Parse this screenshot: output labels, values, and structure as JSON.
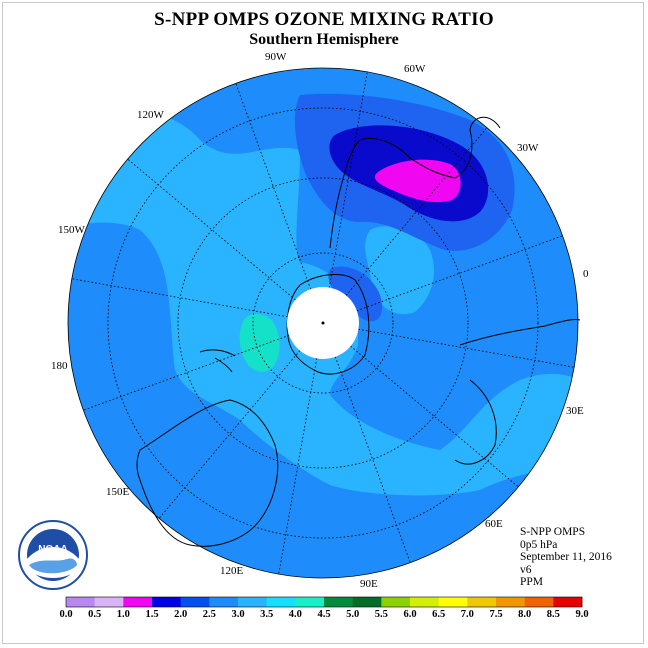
{
  "title": "S-NPP OMPS OZONE MIXING RATIO",
  "subtitle": "Southern Hemisphere",
  "logo": {
    "name": "noaa-logo",
    "text": "NOAA",
    "ring_text": "NATIONAL OCEANIC AND ATMOSPHERIC ADMINISTRATION · U.S. DEPARTMENT OF COMMERCE"
  },
  "info": {
    "instrument": "S-NPP OMPS",
    "level": "0p5 hPa",
    "date": "September 11, 2016",
    "version": "v6",
    "units": "PPM"
  },
  "longitude_labels": [
    "90W",
    "60W",
    "30W",
    "0",
    "30E",
    "60E",
    "90E",
    "120E",
    "150E",
    "180",
    "150W",
    "120W"
  ],
  "colorbar": {
    "ticks": [
      "0.0",
      "0.5",
      "1.0",
      "1.5",
      "2.0",
      "2.5",
      "3.0",
      "3.5",
      "4.0",
      "4.5",
      "5.0",
      "5.5",
      "6.0",
      "6.5",
      "7.0",
      "7.5",
      "8.0",
      "8.5",
      "9.0"
    ],
    "colors": [
      "#b987f0",
      "#d8b4f4",
      "#f006f0",
      "#0000e6",
      "#0050f0",
      "#1e8cfa",
      "#2ab4ff",
      "#14e1ff",
      "#14f0c8",
      "#008c3c",
      "#006e28",
      "#8cd200",
      "#d2f000",
      "#ffff00",
      "#f0c800",
      "#f09600",
      "#f06400",
      "#e60000",
      "#8c5a3c"
    ]
  },
  "colors": {
    "ocean_base": "#1e8cfa",
    "light_band": "#2ab4ff",
    "high_contour": "#1e64f0",
    "max_core": "#0a0acd",
    "peak": "#f006f0",
    "low_spot": "#14e1c8",
    "pole_cap": "#ffffff"
  }
}
